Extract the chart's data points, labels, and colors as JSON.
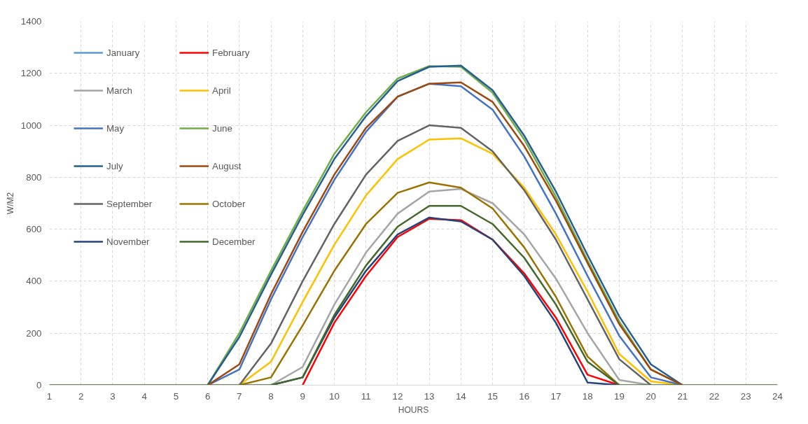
{
  "chart_data": {
    "type": "line",
    "xlabel": "HOURS",
    "ylabel": "W/M2",
    "x": [
      1,
      2,
      3,
      4,
      5,
      6,
      7,
      8,
      9,
      10,
      11,
      12,
      13,
      14,
      15,
      16,
      17,
      18,
      19,
      20,
      21,
      22,
      23,
      24
    ],
    "xlim": [
      1,
      24
    ],
    "xticks": [
      1,
      2,
      3,
      4,
      5,
      6,
      7,
      8,
      9,
      10,
      11,
      12,
      13,
      14,
      15,
      16,
      17,
      18,
      19,
      20,
      21,
      22,
      23,
      24
    ],
    "ylim": [
      0,
      1400
    ],
    "yticks": [
      0,
      200,
      400,
      600,
      800,
      1000,
      1200,
      1400
    ],
    "grid": true,
    "legend": "top left",
    "marker": "none",
    "line_style": "solid",
    "series": [
      {
        "name": "January",
        "color": "#5b9bd5",
        "values": [
          null,
          null,
          null,
          null,
          null,
          null,
          null,
          null,
          null,
          null,
          null,
          null,
          null,
          null,
          null,
          null,
          null,
          null,
          null,
          null,
          null,
          null,
          null,
          null
        ]
      },
      {
        "name": "February",
        "color": "#ff0000",
        "values": [
          null,
          null,
          null,
          null,
          null,
          null,
          null,
          null,
          0,
          240,
          420,
          570,
          640,
          635,
          560,
          430,
          260,
          40,
          0,
          null,
          null,
          null,
          null,
          null
        ]
      },
      {
        "name": "March",
        "color": "#a5a5a5",
        "values": [
          null,
          null,
          null,
          null,
          null,
          null,
          null,
          0,
          70,
          310,
          510,
          660,
          745,
          755,
          700,
          580,
          410,
          200,
          20,
          0,
          null,
          null,
          null,
          null
        ]
      },
      {
        "name": "April",
        "color": "#ffc000",
        "values": [
          null,
          null,
          null,
          null,
          null,
          null,
          0,
          90,
          320,
          540,
          730,
          870,
          945,
          950,
          890,
          760,
          580,
          360,
          120,
          15,
          0,
          null,
          null,
          null
        ]
      },
      {
        "name": "May",
        "color": "#4472c4",
        "values": [
          null,
          null,
          null,
          null,
          null,
          0,
          60,
          330,
          570,
          790,
          975,
          1110,
          1160,
          1150,
          1060,
          880,
          660,
          420,
          190,
          30,
          0,
          null,
          null,
          null
        ]
      },
      {
        "name": "June",
        "color": "#70ad47",
        "values": [
          null,
          null,
          null,
          null,
          null,
          0,
          200,
          440,
          670,
          890,
          1050,
          1180,
          1228,
          1225,
          1125,
          945,
          725,
          480,
          245,
          60,
          0,
          null,
          null,
          null
        ]
      },
      {
        "name": "July",
        "color": "#255e91",
        "values": [
          null,
          null,
          null,
          null,
          null,
          0,
          185,
          425,
          655,
          870,
          1035,
          1170,
          1225,
          1230,
          1135,
          960,
          745,
          500,
          265,
          80,
          0,
          null,
          null,
          null
        ]
      },
      {
        "name": "August",
        "color": "#9e480e",
        "values": [
          null,
          null,
          null,
          null,
          null,
          0,
          80,
          350,
          590,
          810,
          990,
          1110,
          1160,
          1165,
          1090,
          920,
          710,
          470,
          235,
          60,
          0,
          null,
          null,
          null
        ]
      },
      {
        "name": "September",
        "color": "#636363",
        "values": [
          null,
          null,
          null,
          null,
          null,
          null,
          0,
          160,
          400,
          620,
          810,
          940,
          1000,
          990,
          900,
          750,
          560,
          330,
          100,
          0,
          null,
          null,
          null,
          null
        ]
      },
      {
        "name": "October",
        "color": "#997300",
        "values": [
          null,
          null,
          null,
          null,
          null,
          null,
          0,
          30,
          230,
          440,
          620,
          740,
          780,
          760,
          680,
          530,
          340,
          110,
          0,
          null,
          null,
          null,
          null,
          null
        ]
      },
      {
        "name": "November",
        "color": "#264478",
        "values": [
          null,
          null,
          null,
          null,
          null,
          null,
          null,
          0,
          30,
          260,
          440,
          580,
          645,
          630,
          560,
          420,
          240,
          10,
          0,
          null,
          null,
          null,
          null,
          null
        ]
      },
      {
        "name": "December",
        "color": "#43682b",
        "values": [
          0,
          0,
          0,
          0,
          0,
          0,
          0,
          0,
          30,
          270,
          460,
          610,
          690,
          690,
          620,
          490,
          310,
          90,
          0,
          0,
          0,
          0,
          0,
          0
        ]
      }
    ]
  }
}
